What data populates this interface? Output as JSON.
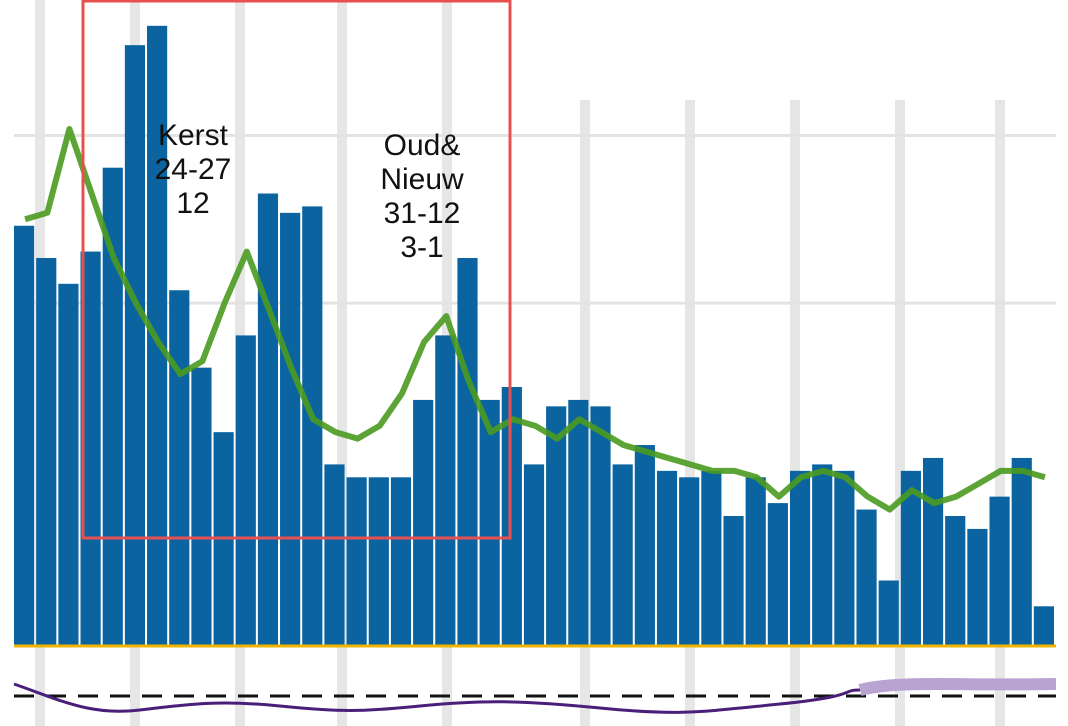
{
  "chart_data": {
    "type": "bar",
    "ylim": [
      0,
      100
    ],
    "gridlines": [
      79,
      53
    ],
    "color": "#0b64a0",
    "values": [
      65,
      60,
      56,
      61,
      74,
      93,
      96,
      55,
      43,
      33,
      48,
      70,
      67,
      68,
      28,
      26,
      26,
      26,
      38,
      48,
      60,
      38,
      40,
      28,
      37,
      38,
      37,
      28,
      31,
      27,
      26,
      27,
      20,
      26,
      22,
      27,
      28,
      27,
      21,
      10,
      27,
      29,
      20,
      18,
      23,
      29,
      6
    ],
    "line": {
      "color": "#4a9a1f",
      "values": [
        66,
        67,
        80,
        70,
        60,
        53,
        47,
        42,
        44,
        53,
        61,
        52,
        43,
        35,
        33,
        32,
        34,
        39,
        47,
        51,
        41,
        33,
        35,
        34,
        32,
        35,
        33,
        31,
        30,
        29,
        28,
        27,
        27,
        26,
        23,
        26,
        27,
        26,
        23,
        21,
        24,
        22,
        23,
        25,
        27,
        27,
        26
      ]
    },
    "annotations": [
      {
        "lines": [
          "Kerst",
          "24-27",
          "12"
        ]
      },
      {
        "lines": [
          "Oud&",
          "Nieuw",
          "31-12",
          "3-1"
        ]
      }
    ]
  }
}
